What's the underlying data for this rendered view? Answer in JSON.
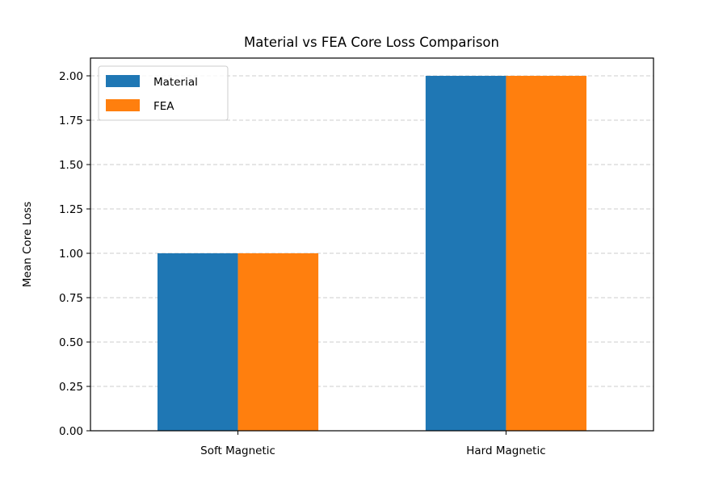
{
  "chart_data": {
    "type": "bar",
    "title": "Material vs FEA Core Loss Comparison",
    "xlabel": "",
    "ylabel": "Mean Core Loss",
    "categories": [
      "Soft Magnetic",
      "Hard Magnetic"
    ],
    "series": [
      {
        "name": "Material",
        "values": [
          1.0,
          2.0
        ],
        "color": "#1f77b4"
      },
      {
        "name": "FEA",
        "values": [
          1.0,
          2.0
        ],
        "color": "#ff7f0e"
      }
    ],
    "ylim": [
      0,
      2.1
    ],
    "yticks": [
      0.0,
      0.25,
      0.5,
      0.75,
      1.0,
      1.25,
      1.5,
      1.75,
      2.0
    ],
    "ytick_labels": [
      "0.00",
      "0.25",
      "0.50",
      "0.75",
      "1.00",
      "1.25",
      "1.50",
      "1.75",
      "2.00"
    ],
    "grid": {
      "axis": "y",
      "style": "dashed",
      "color": "#cccccc"
    },
    "legend_position": "top-left"
  }
}
